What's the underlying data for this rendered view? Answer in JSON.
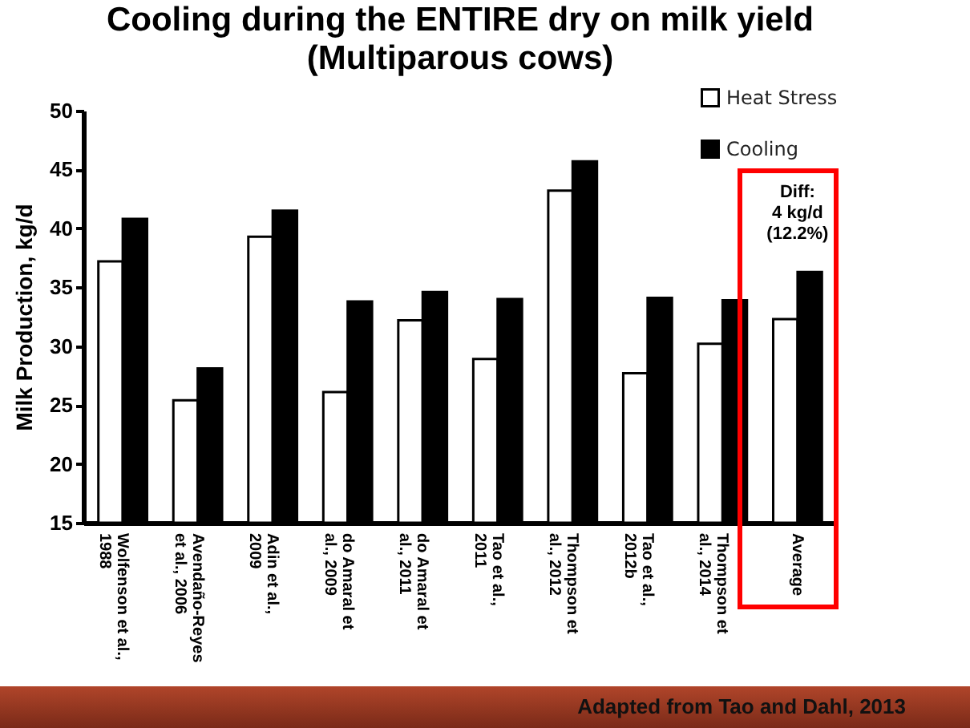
{
  "chart_data": {
    "type": "bar",
    "title": "Cooling during the ENTIRE dry on milk yield\n(Multiparous cows)",
    "ylabel": "Milk Production, kg/d",
    "categories": [
      "Wolfenson et al.,\n1988",
      "Avendaño-Reyes\net al., 2006",
      "Adin et al.,\n2009",
      "do Amaral et\nal., 2009",
      "do Amaral et\nal., 2011",
      "Tao et al.,\n2011",
      "Thompson et\nal., 2012",
      "Tao et al.,\n2012b",
      "Thompson et\nal., 2014",
      "Average"
    ],
    "series": [
      {
        "name": "Heat Stress",
        "color": "#ffffff",
        "values": [
          37.2,
          25.4,
          39.3,
          26.1,
          32.2,
          28.9,
          43.2,
          27.7,
          30.2,
          32.3
        ]
      },
      {
        "name": "Cooling",
        "color": "#000000",
        "values": [
          40.8,
          28.1,
          41.5,
          33.8,
          34.6,
          34.0,
          45.7,
          34.1,
          33.9,
          36.3
        ]
      }
    ],
    "ylim": [
      15,
      50
    ],
    "yticks": [
      15,
      20,
      25,
      30,
      35,
      40,
      45,
      50
    ],
    "legend": "top right",
    "annotations": [
      "Diff:\n4 kg/d\n(12.2%)",
      "Adapted from Tao and Dahl, 2013"
    ]
  }
}
